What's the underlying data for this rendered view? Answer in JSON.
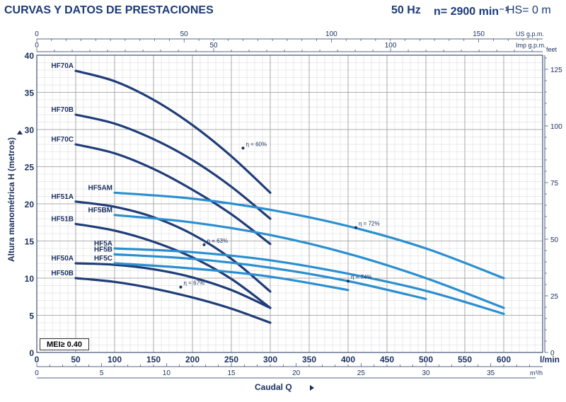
{
  "header": {
    "title": "CURVAS Y DATOS DE PRESTACIONES",
    "frequency": "50 Hz",
    "speed": "n= 2900 min⁻¹",
    "hs": "HS= 0 m"
  },
  "mei_label": "MEI≥ 0.40",
  "colors": {
    "grid_major": "#9a9a9a",
    "grid_minor": "#d6d6d6",
    "dark_series": "#1f3d78",
    "light_series": "#2a8fd0",
    "axis": "#1b2f5e"
  },
  "chart_data": {
    "type": "line",
    "xlabel": "Caudal Q",
    "ylabel": "Altura manométrica H (metros)",
    "x_unit": "l/min",
    "xlim": [
      0,
      650
    ],
    "ylim": [
      0,
      40
    ],
    "x_ticks": [
      0,
      50,
      100,
      150,
      200,
      250,
      300,
      350,
      400,
      450,
      500,
      550,
      600
    ],
    "y_ticks": [
      0,
      5,
      10,
      15,
      20,
      25,
      30,
      35,
      40
    ],
    "grid": true,
    "secondary_axes": {
      "m3h": {
        "unit": "m³/h",
        "ticks": [
          0,
          5,
          10,
          15,
          20,
          25,
          30,
          35
        ]
      },
      "us_gpm": {
        "unit": "US g.p.m.",
        "ticks": [
          0,
          50,
          100,
          150
        ]
      },
      "imp_gpm": {
        "unit": "Imp g.p.m.",
        "ticks": [
          0,
          50,
          100
        ]
      },
      "feet": {
        "unit": "feet",
        "ticks": [
          0,
          25,
          50,
          75,
          100,
          125
        ]
      }
    },
    "series": [
      {
        "name": "HF70A",
        "color": "#1f3d78",
        "x": [
          50,
          100,
          150,
          200,
          250,
          300
        ],
        "y": [
          37.9,
          36.5,
          34.0,
          30.6,
          26.4,
          21.5
        ]
      },
      {
        "name": "HF70B",
        "color": "#1f3d78",
        "x": [
          50,
          100,
          150,
          200,
          250,
          300
        ],
        "y": [
          32.0,
          30.8,
          28.7,
          25.9,
          22.3,
          18.0
        ]
      },
      {
        "name": "HF70C",
        "color": "#1f3d78",
        "x": [
          50,
          100,
          150,
          200,
          250,
          300
        ],
        "y": [
          28.0,
          26.8,
          24.7,
          21.9,
          18.6,
          14.6
        ]
      },
      {
        "name": "HF51A",
        "color": "#1f3d78",
        "x": [
          50,
          100,
          150,
          200,
          250,
          300
        ],
        "y": [
          20.3,
          19.6,
          18.2,
          15.9,
          12.6,
          8.2
        ]
      },
      {
        "name": "HF51B",
        "color": "#1f3d78",
        "x": [
          50,
          100,
          150,
          200,
          250,
          300
        ],
        "y": [
          17.3,
          16.4,
          14.9,
          12.8,
          9.9,
          6.0
        ]
      },
      {
        "name": "HF50A",
        "color": "#1f3d78",
        "x": [
          50,
          100,
          150,
          200,
          250,
          300
        ],
        "y": [
          12.0,
          11.8,
          11.2,
          10.1,
          8.4,
          6.0
        ]
      },
      {
        "name": "HF50B",
        "color": "#1f3d78",
        "x": [
          50,
          100,
          150,
          200,
          250,
          300
        ],
        "y": [
          10.0,
          9.5,
          8.6,
          7.4,
          5.9,
          4.0
        ]
      },
      {
        "name": "HF5AM",
        "color": "#2a8fd0",
        "x": [
          100,
          200,
          300,
          400,
          500,
          600
        ],
        "y": [
          21.5,
          20.7,
          19.2,
          17.0,
          14.0,
          10.0
        ]
      },
      {
        "name": "HF5BM",
        "color": "#2a8fd0",
        "x": [
          100,
          200,
          300,
          400,
          500,
          600
        ],
        "y": [
          18.5,
          17.5,
          15.8,
          13.3,
          10.0,
          6.0
        ]
      },
      {
        "name": "HF5A",
        "color": "#2a8fd0",
        "x": [
          100,
          200,
          300,
          400,
          500,
          600
        ],
        "y": [
          14.0,
          13.5,
          12.4,
          10.6,
          8.3,
          5.2
        ]
      },
      {
        "name": "HF5B",
        "color": "#2a8fd0",
        "x": [
          100,
          200,
          300,
          400,
          500
        ],
        "y": [
          13.2,
          12.6,
          11.4,
          9.6,
          7.2
        ]
      },
      {
        "name": "HF5C",
        "color": "#2a8fd0",
        "x": [
          100,
          200,
          300,
          400
        ],
        "y": [
          12.0,
          11.3,
          10.2,
          8.4
        ]
      }
    ],
    "annotations": [
      {
        "text": "η = 60%",
        "x": 265,
        "y": 27.5
      },
      {
        "text": "η = 63%",
        "x": 215,
        "y": 14.5
      },
      {
        "text": "η = 67%",
        "x": 185,
        "y": 8.8
      },
      {
        "text": "η = 72%",
        "x": 410,
        "y": 16.8
      },
      {
        "text": "η = 74%",
        "x": 400,
        "y": 9.6
      }
    ]
  }
}
